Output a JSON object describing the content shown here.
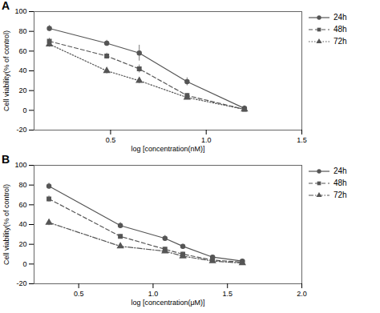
{
  "chart_data": [
    {
      "type": "line",
      "title": "A",
      "xlabel": "log [concentration(nM)]",
      "ylabel": "Cell viability(% of control)",
      "xlim": [
        0.1,
        1.5
      ],
      "ylim": [
        -20,
        100
      ],
      "xticks": [
        0.5,
        {
          "value": 1.0,
          "label": "1.0"
        },
        1.5
      ],
      "yticks": [
        -20,
        0,
        20,
        40,
        60,
        80,
        100
      ],
      "legend": "right",
      "x": [
        0.18,
        0.48,
        0.65,
        0.9,
        1.2
      ],
      "series": [
        {
          "name": "24h",
          "color": "#555555",
          "marker": "circle",
          "line_style": "solid",
          "values": [
            83,
            68,
            58,
            29,
            2
          ],
          "yerr": [
            3,
            3,
            8,
            4,
            2
          ]
        },
        {
          "name": "48h",
          "color": "#555555",
          "marker": "square",
          "line_style": "dashed",
          "values": [
            70,
            55,
            42,
            15,
            1
          ],
          "yerr": [
            3,
            3,
            4,
            2,
            1
          ]
        },
        {
          "name": "72h",
          "color": "#555555",
          "marker": "triangle",
          "line_style": "dotted",
          "values": [
            67,
            40,
            30,
            13,
            1
          ],
          "yerr": [
            3,
            3,
            3,
            2,
            1
          ]
        }
      ]
    },
    {
      "type": "line",
      "title": "B",
      "xlabel": "log [concentration(μM)]",
      "ylabel": "Cell viability(% of control)",
      "xlim": [
        0.2,
        2.0
      ],
      "ylim": [
        -20,
        100
      ],
      "xticks": [
        0.5,
        {
          "value": 1.0,
          "label": "1.0"
        },
        1.5,
        {
          "value": 2.0,
          "label": "2.0"
        }
      ],
      "yticks": [
        -20,
        0,
        20,
        40,
        60,
        80,
        100
      ],
      "legend": "right",
      "x": [
        0.3,
        0.78,
        1.08,
        1.2,
        1.4,
        1.6
      ],
      "series": [
        {
          "name": "24h",
          "color": "#555555",
          "marker": "circle",
          "line_style": "solid",
          "values": [
            79,
            39,
            26,
            18,
            7,
            3
          ],
          "yerr": [
            3,
            3,
            3,
            2,
            1,
            1
          ]
        },
        {
          "name": "48h",
          "color": "#555555",
          "marker": "square",
          "line_style": "dashed",
          "values": [
            66,
            28,
            15,
            10,
            4,
            2
          ],
          "yerr": [
            3,
            2,
            2,
            2,
            1,
            1
          ]
        },
        {
          "name": "72h",
          "color": "#555555",
          "marker": "triangle",
          "line_style": "dashdot",
          "values": [
            42,
            18,
            13,
            8,
            3,
            1
          ],
          "yerr": [
            3,
            2,
            2,
            1,
            1,
            1
          ]
        }
      ]
    }
  ]
}
